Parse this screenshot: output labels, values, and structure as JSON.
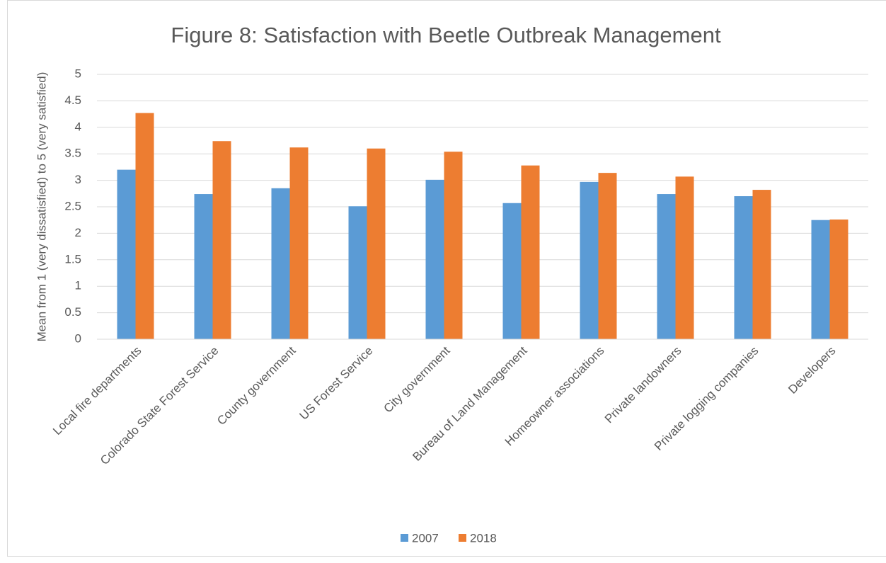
{
  "chart_data": {
    "type": "bar",
    "title": "Figure 8: Satisfaction with Beetle Outbreak Management",
    "y_label": "Mean from 1 (very dissatisfied) to 5 (very satisfied)",
    "categories": [
      "Local fire departments",
      "Colorado State Forest Service",
      "County government",
      "US Forest Service",
      "City government",
      "Bureau of Land Management",
      "Homeowner associations",
      "Private landowners",
      "Private logging companies",
      "Developers"
    ],
    "series": [
      {
        "name": "2007",
        "color": "#5b9bd5",
        "values": [
          3.2,
          2.74,
          2.85,
          2.51,
          3.01,
          2.57,
          2.97,
          2.74,
          2.7,
          2.25
        ]
      },
      {
        "name": "2018",
        "color": "#ed7d31",
        "values": [
          4.27,
          3.74,
          3.62,
          3.6,
          3.54,
          3.28,
          3.14,
          3.07,
          2.82,
          2.26
        ]
      }
    ],
    "ylim": [
      0,
      5
    ],
    "yticks": [
      0,
      0.5,
      1,
      1.5,
      2,
      2.5,
      3,
      3.5,
      4,
      4.5,
      5
    ],
    "grid": true,
    "legend": "bottom"
  }
}
